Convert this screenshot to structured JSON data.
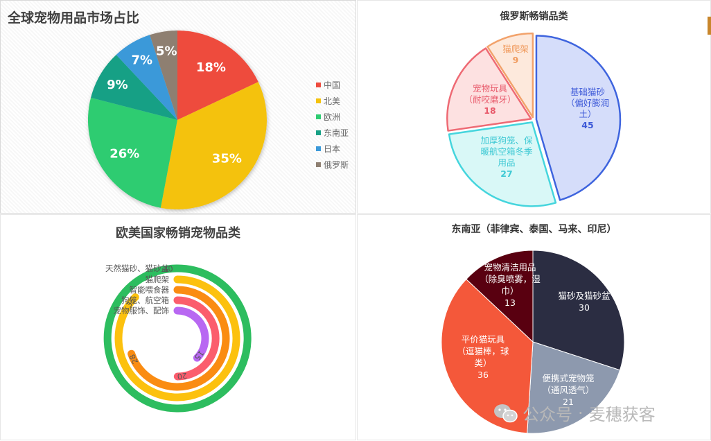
{
  "watermark": {
    "platform": "公众号",
    "separator": "·",
    "account": "麦穗获客"
  },
  "chart_data": [
    {
      "type": "pie",
      "title": "全球宠物用品市场占比",
      "categories": [
        "中国",
        "北美",
        "欧洲",
        "东南亚",
        "日本",
        "俄罗斯"
      ],
      "values": [
        18,
        35,
        26,
        9,
        7,
        5
      ],
      "data_labels": [
        "18%",
        "35%",
        "26%",
        "9%",
        "7%",
        "5%"
      ],
      "colors": [
        "#ee4b3e",
        "#f4c20d",
        "#2ecc71",
        "#17a085",
        "#3b99d9",
        "#8e7f71"
      ],
      "legend": "right"
    },
    {
      "type": "pie",
      "title": "俄罗斯畅销品类",
      "categories": [
        "基础猫砂（偏好膨润土）",
        "加厚狗笼、保暖航空箱冬季用品",
        "宠物玩具（耐咬磨牙）",
        "猫爬架"
      ],
      "label_lines": [
        [
          "基础猫砂",
          "（偏好膨润",
          "土）"
        ],
        [
          "加厚狗笼、保",
          "暖航空箱冬季",
          "用品"
        ],
        [
          "宠物玩具",
          "（耐咬磨牙）"
        ],
        [
          "猫爬架"
        ]
      ],
      "values": [
        45,
        27,
        18,
        9
      ],
      "fills": [
        "#d5ddfa",
        "#d9f8f7",
        "#fde1e1",
        "#fde9dc"
      ],
      "strokes": [
        "#3e64de",
        "#45d5dd",
        "#ee6a74",
        "#f2a26b"
      ],
      "label_colors": [
        "#3e5ad8",
        "#3ec9d4",
        "#e8596a",
        "#f09a5d"
      ],
      "legend": "none"
    },
    {
      "type": "radial_bar",
      "title": "欧美国家畅销宠物品类",
      "categories": [
        "天然猫砂、猫砂盆",
        "猫爬架",
        "智能喂食器",
        "狗笼、航空箱",
        "宠物服饰、配饰"
      ],
      "values": [
        40,
        35,
        28,
        20,
        15
      ],
      "colors": [
        "#2dbd5f",
        "#fcc10e",
        "#fa8c12",
        "#fb5d6d",
        "#b868f2"
      ],
      "max": 40,
      "legend": "none"
    },
    {
      "type": "pie",
      "title": "东南亚（菲律宾、泰国、马来、印尼）",
      "categories": [
        "猫砂及猫砂盆",
        "便携式宠物笼（通风透气）",
        "平价猫玩具（逗猫棒，球类）",
        "宠物清洁用品（除臭喷雾，湿巾）"
      ],
      "label_lines": [
        [
          "猫砂及猫砂盆"
        ],
        [
          "便携式宠物笼",
          "（通风透气）"
        ],
        [
          "平价猫玩具",
          "（逗猫棒，球",
          "类）"
        ],
        [
          "宠物清洁用品",
          "（除臭喷雾，湿",
          "巾）"
        ]
      ],
      "values": [
        30,
        21,
        36,
        13
      ],
      "colors": [
        "#2b2d42",
        "#8d99ae",
        "#f4583a",
        "#590010"
      ],
      "legend": "none"
    }
  ]
}
